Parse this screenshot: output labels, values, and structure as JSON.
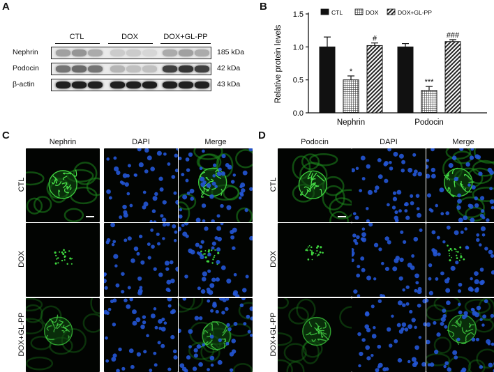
{
  "panels": {
    "A": "A",
    "B": "B",
    "C": "C",
    "D": "D"
  },
  "blot": {
    "groups": [
      "CTL",
      "DOX",
      "DOX+GL-PP"
    ],
    "rows": [
      {
        "protein": "Nephrin",
        "size": "185 kDa",
        "intensity": [
          0.35,
          0.4,
          0.3,
          0.15,
          0.15,
          0.1,
          0.3,
          0.35,
          0.3
        ]
      },
      {
        "protein": "Podocin",
        "size": "42 kDa",
        "intensity": [
          0.55,
          0.6,
          0.55,
          0.25,
          0.2,
          0.2,
          0.8,
          0.85,
          0.8
        ]
      },
      {
        "protein": "β-actin",
        "size": "43 kDa",
        "intensity": [
          0.95,
          0.95,
          0.95,
          0.95,
          0.95,
          0.95,
          0.95,
          0.95,
          0.95
        ]
      }
    ]
  },
  "chart_data": {
    "type": "bar",
    "categories": [
      "Nephrin",
      "Podocin"
    ],
    "ylabel": "Relative protein levels",
    "ylim": [
      0,
      1.5
    ],
    "yticks": [
      "0.0",
      "0.5",
      "1.0",
      "1.5"
    ],
    "legend_position": "top",
    "series": [
      {
        "name": "CTL",
        "values": [
          1.0,
          1.0
        ],
        "errors": [
          0.15,
          0.05
        ],
        "fill": "solid"
      },
      {
        "name": "DOX",
        "values": [
          0.5,
          0.34
        ],
        "errors": [
          0.06,
          0.06
        ],
        "fill": "grid"
      },
      {
        "name": "DOX+GL-PP",
        "values": [
          1.02,
          1.08
        ],
        "errors": [
          0.04,
          0.03
        ],
        "fill": "diagonal"
      }
    ],
    "annotations": [
      [
        "",
        "*",
        "#"
      ],
      [
        "",
        "***",
        "###"
      ]
    ]
  },
  "micro": {
    "C": {
      "cols": [
        "Nephrin",
        "DAPI",
        "Merge"
      ],
      "rows": [
        "CTL",
        "DOX",
        "DOX+GL-PP"
      ]
    },
    "D": {
      "cols": [
        "Podocin",
        "DAPI",
        "Merge"
      ],
      "rows": [
        "CTL",
        "DOX",
        "DOX+GL-PP"
      ]
    }
  },
  "colors": {
    "green": "#2fb52f",
    "blue": "#1e4ec8",
    "bg": "#000000"
  }
}
